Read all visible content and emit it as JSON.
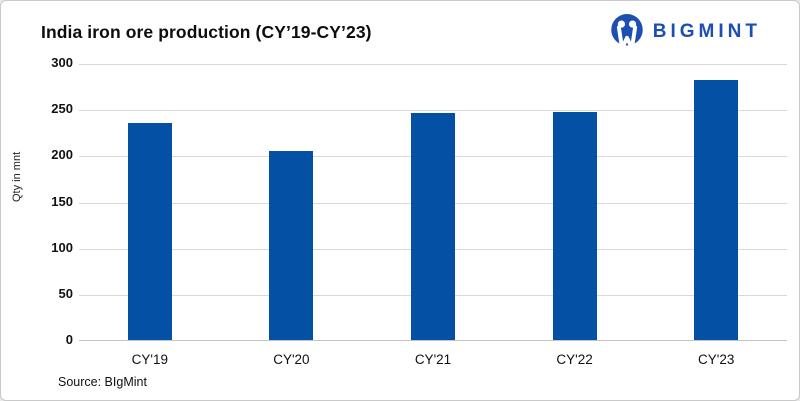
{
  "header": {
    "title": "India iron ore production (CY’19-CY’23)",
    "logo_text": "BIGMINT"
  },
  "footer": {
    "source": "Source: BIgMint"
  },
  "colors": {
    "bar": "#0450a4",
    "logo_blue": "#1d4fb3",
    "gridline": "#d9d9d9",
    "axis_line": "#c3c3c3"
  },
  "chart_data": {
    "type": "bar",
    "title": "India iron ore production (CY’19-CY’23)",
    "categories": [
      "CY'19",
      "CY'20",
      "CY'21",
      "CY'22",
      "CY'23"
    ],
    "values": [
      235,
      205,
      246,
      247,
      282
    ],
    "xlabel": "",
    "ylabel": "Qty in mnt",
    "ylim": [
      0,
      300
    ],
    "yticks": [
      0,
      50,
      100,
      150,
      200,
      250,
      300
    ],
    "grid": true,
    "legend": false,
    "bar_color": "#0450a4"
  }
}
